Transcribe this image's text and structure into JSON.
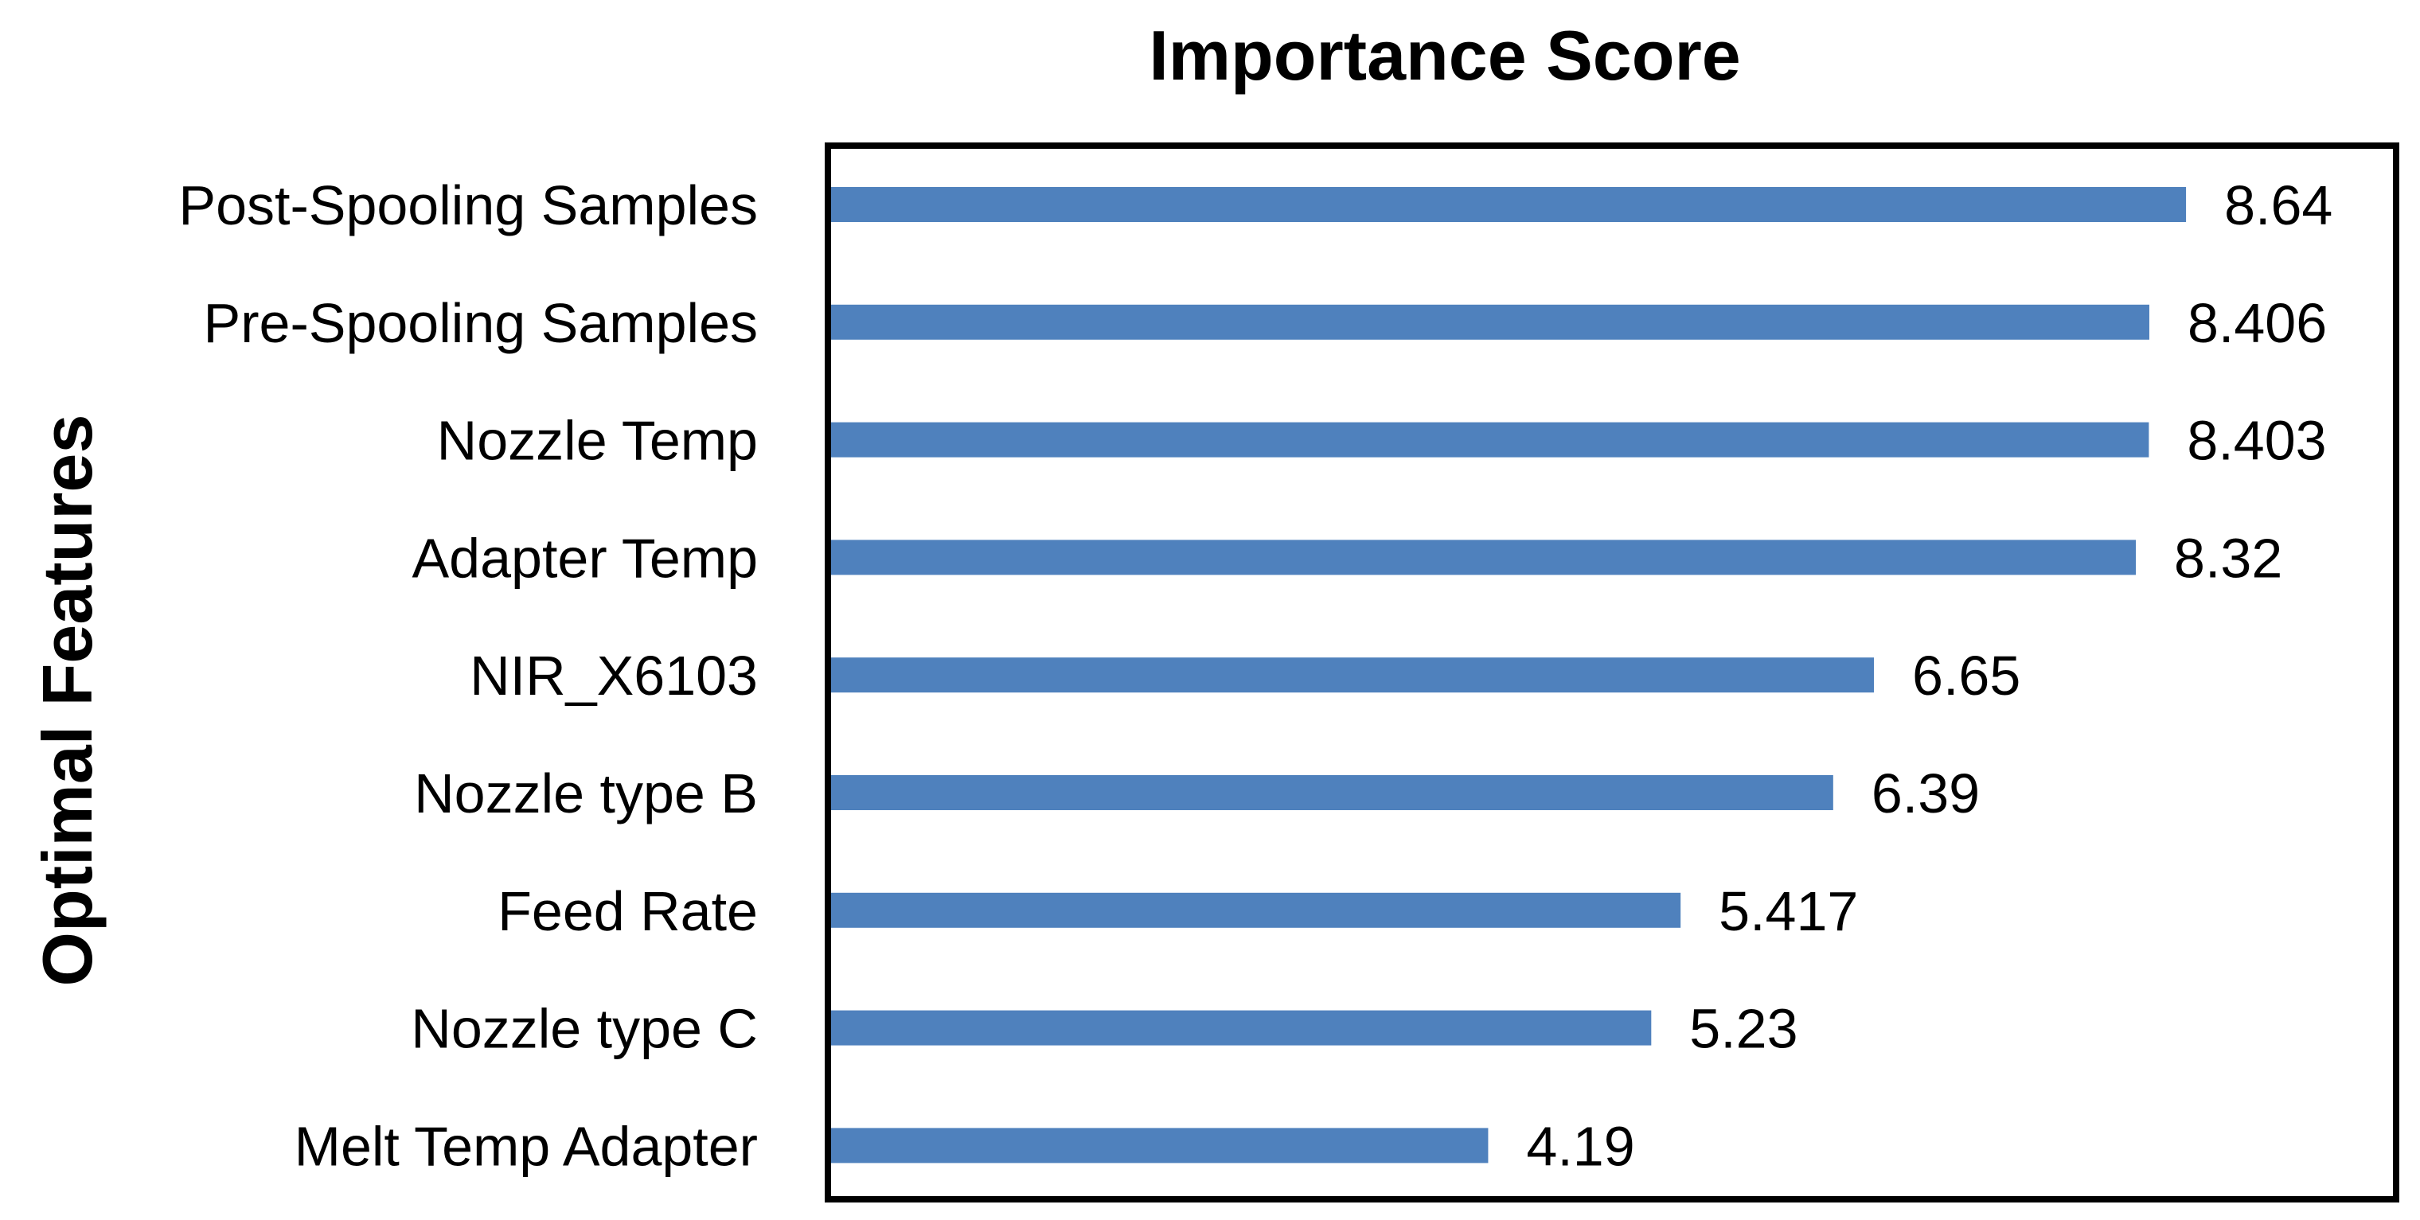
{
  "chart_data": {
    "type": "bar",
    "orientation": "horizontal",
    "title": "Importance Score",
    "xlabel": "",
    "ylabel": "Optimal Features",
    "categories": [
      "Post-Spooling Samples",
      "Pre-Spooling Samples",
      "Nozzle Temp",
      "Adapter Temp",
      "NIR_X6103",
      "Nozzle type B",
      "Feed Rate",
      "Nozzle type C",
      "Melt Temp Adapter"
    ],
    "values": [
      8.64,
      8.406,
      8.403,
      8.32,
      6.65,
      6.39,
      5.417,
      5.23,
      4.19
    ],
    "value_labels": [
      "8.64",
      "8.406",
      "8.403",
      "8.32",
      "6.65",
      "6.39",
      "5.417",
      "5.23",
      "4.19"
    ],
    "xlim": [
      0,
      10
    ],
    "grid": false,
    "legend": "none",
    "bar_color": "#4F81BD",
    "frame_color": "#000000"
  }
}
